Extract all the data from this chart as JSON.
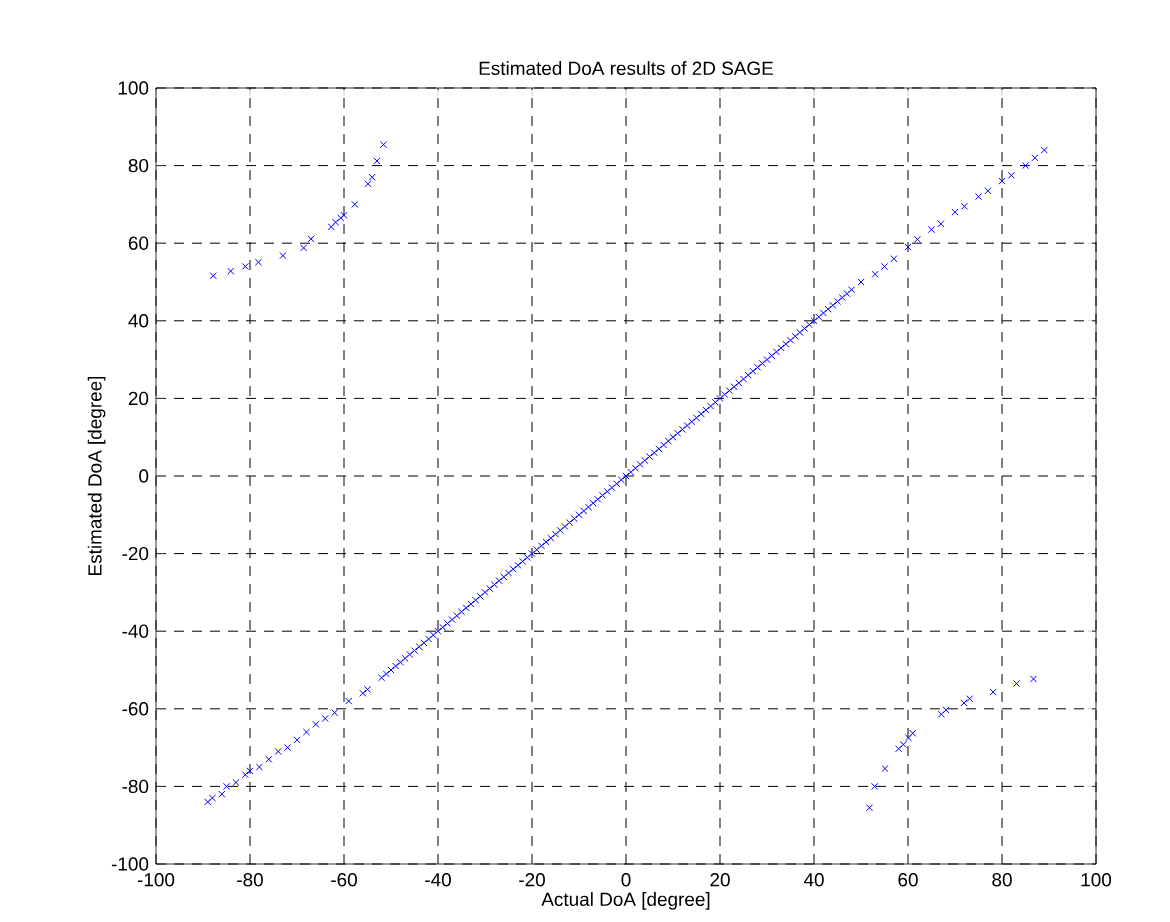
{
  "chart_data": {
    "type": "scatter",
    "title": "Estimated DoA results of 2D SAGE",
    "xlabel": "Actual DoA [degree]",
    "ylabel": "Estimated DoA [degree]",
    "xlim": [
      -100,
      100
    ],
    "ylim": [
      -100,
      100
    ],
    "xticks": [
      -100,
      -80,
      -60,
      -40,
      -20,
      0,
      20,
      40,
      60,
      80,
      100
    ],
    "yticks": [
      -100,
      -80,
      -60,
      -40,
      -20,
      0,
      20,
      40,
      60,
      80,
      100
    ],
    "grid": true,
    "marker": "cross",
    "color": "#0000ff",
    "x": [
      -89,
      -88,
      -86,
      -85,
      -83,
      -81,
      -80,
      -78,
      -76,
      -74,
      -72,
      -70,
      -68,
      -66,
      -64,
      -62,
      -59,
      -56,
      -55,
      -52,
      -51,
      -50,
      -49,
      -48,
      -47,
      -46,
      -45,
      -44,
      -43,
      -42,
      -41,
      -40,
      -39,
      -38,
      -37,
      -36,
      -35,
      -34,
      -33,
      -32,
      -31,
      -30,
      -29,
      -28,
      -27,
      -26,
      -25,
      -24,
      -23,
      -22,
      -21,
      -20,
      -19,
      -18,
      -17,
      -16,
      -15,
      -14,
      -13,
      -12,
      -11,
      -10,
      -9,
      -8,
      -7,
      -6,
      -5,
      -4,
      -3,
      -2,
      -1,
      0,
      1,
      2,
      3,
      4,
      5,
      6,
      7,
      8,
      9,
      10,
      11,
      12,
      13,
      14,
      15,
      16,
      17,
      18,
      19,
      20,
      21,
      22,
      23,
      24,
      25,
      26,
      27,
      28,
      29,
      30,
      31,
      32,
      33,
      34,
      35,
      36,
      37,
      38,
      39,
      40,
      41,
      42,
      43,
      44,
      45,
      46,
      47,
      48,
      50,
      53,
      55,
      57,
      60,
      62,
      65,
      67,
      70,
      72,
      75,
      77,
      80,
      82,
      85,
      87,
      89,
      -87.8,
      -84.1,
      -81.0,
      -78.2,
      -73.0,
      -68.6,
      -67.0,
      -62.7,
      -61.8,
      -60.7,
      -60.0,
      -57.7,
      -54.9,
      -54.0,
      -53.0,
      -51.6,
      51.8,
      52.9,
      55.1,
      58.0,
      59.0,
      60.1,
      61.0,
      67.1,
      68.1,
      71.9,
      73.1,
      78.1,
      83.1,
      86.7
    ],
    "values": [
      -84,
      -83,
      -82,
      -80,
      -79,
      -77,
      -76,
      -75,
      -73,
      -71,
      -70,
      -68,
      -66,
      -64,
      -62.5,
      -61,
      -58,
      -56,
      -55,
      -52,
      -51,
      -50,
      -49,
      -48,
      -47,
      -46,
      -45,
      -44,
      -43,
      -42,
      -41,
      -40,
      -39,
      -38,
      -37,
      -36,
      -35,
      -34,
      -33,
      -32,
      -31,
      -30,
      -29,
      -28,
      -27,
      -26,
      -25,
      -24,
      -23,
      -22,
      -21,
      -20,
      -19,
      -18,
      -17,
      -16,
      -15,
      -14,
      -13,
      -12,
      -11,
      -10,
      -9,
      -8,
      -7,
      -6,
      -5,
      -4,
      -3,
      -2,
      -1,
      0,
      1,
      2,
      3,
      4,
      5,
      6,
      7,
      8,
      9,
      10,
      11,
      12,
      13,
      14,
      15,
      16,
      17,
      18,
      19,
      20,
      21,
      22,
      23,
      24,
      25,
      26,
      27,
      28,
      29,
      30,
      31,
      32,
      33,
      34,
      35,
      36,
      37,
      38,
      39,
      40,
      41,
      42,
      43,
      44,
      45,
      46,
      47,
      48,
      50,
      52,
      54,
      56,
      59,
      61,
      63.5,
      65,
      68,
      69.5,
      72,
      73.5,
      76,
      77.5,
      80,
      82,
      84,
      51.6,
      52.8,
      54.0,
      55.1,
      56.8,
      58.8,
      61.1,
      64.2,
      65.4,
      66.5,
      67.2,
      70.0,
      75.3,
      77.0,
      81.2,
      85.4,
      -85.5,
      -80.0,
      -75.4,
      -70.3,
      -69.2,
      -67.5,
      -66.3,
      -61.4,
      -60.3,
      -58.5,
      -57.4,
      -55.7,
      -53.5,
      -52.3
    ]
  }
}
